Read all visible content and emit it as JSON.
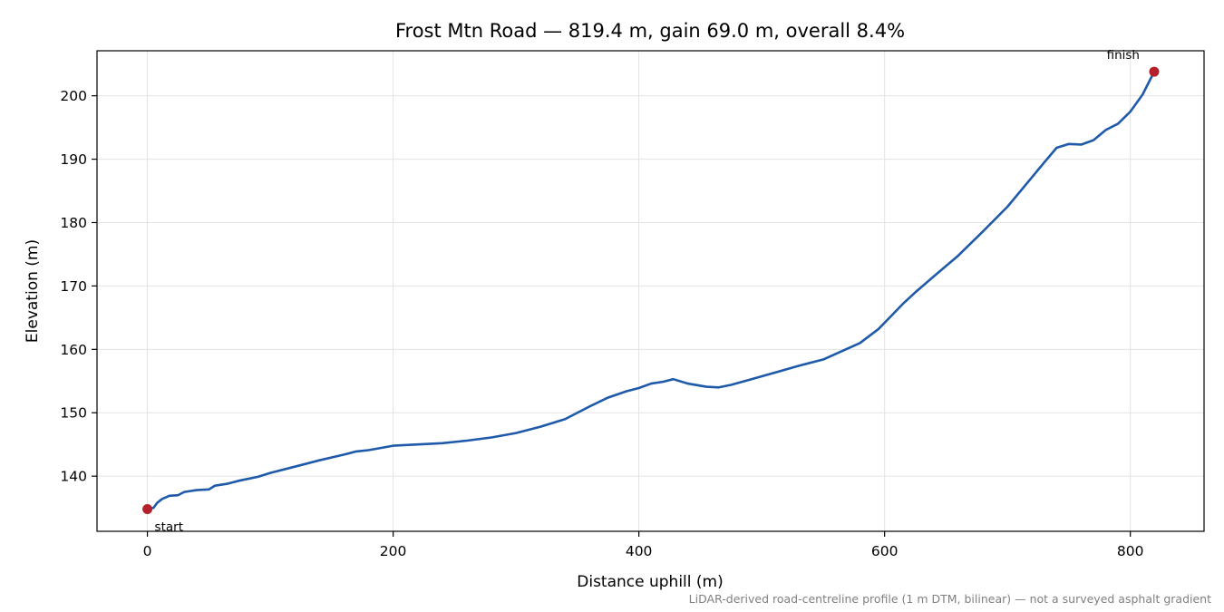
{
  "chart_data": {
    "type": "line",
    "title": "Frost Mtn Road — 819.4 m, gain 69.0 m, overall 8.4%",
    "xlabel": "Distance uphill (m)",
    "ylabel": "Elevation (m)",
    "xlim": [
      -41,
      860
    ],
    "ylim": [
      131.3,
      207.1
    ],
    "xticks": [
      0,
      200,
      400,
      600,
      800
    ],
    "yticks": [
      140,
      150,
      160,
      170,
      180,
      190,
      200
    ],
    "grid": true,
    "footnote": "LiDAR-derived road-centreline profile (1 m DTM, bilinear) — not a surveyed asphalt gradient",
    "line_color": "#1f5aaa",
    "marker_color": "#b5202a",
    "series": [
      {
        "x": [
          0,
          5,
          8,
          12,
          18,
          25,
          30,
          40,
          50,
          55,
          65,
          75,
          90,
          100,
          120,
          140,
          160,
          170,
          180,
          200,
          220,
          240,
          260,
          280,
          300,
          320,
          340,
          350,
          360,
          375,
          390,
          400,
          410,
          420,
          428,
          440,
          455,
          465,
          475,
          490,
          510,
          530,
          550,
          565,
          580,
          595,
          605,
          615,
          625,
          640,
          660,
          680,
          700,
          715,
          730,
          740,
          750,
          760,
          770,
          780,
          790,
          800,
          810,
          819.4
        ],
        "y": [
          134.8,
          135.0,
          135.8,
          136.4,
          136.9,
          137.0,
          137.5,
          137.8,
          137.9,
          138.5,
          138.8,
          139.3,
          139.9,
          140.5,
          141.5,
          142.5,
          143.4,
          143.9,
          144.1,
          144.8,
          145.0,
          145.2,
          145.6,
          146.1,
          146.8,
          147.8,
          149.0,
          150.0,
          151.0,
          152.4,
          153.4,
          153.9,
          154.6,
          154.9,
          155.3,
          154.6,
          154.1,
          154.0,
          154.4,
          155.2,
          156.3,
          157.4,
          158.4,
          159.7,
          161.0,
          163.2,
          165.2,
          167.2,
          169.0,
          171.5,
          174.8,
          178.6,
          182.5,
          186.0,
          189.5,
          191.8,
          192.4,
          192.3,
          193.0,
          194.6,
          195.6,
          197.5,
          200.2,
          203.8
        ]
      }
    ],
    "annotations": [
      {
        "text": "start",
        "x": 0,
        "y": 134.8
      },
      {
        "text": "finish",
        "x": 819.4,
        "y": 203.8
      }
    ]
  }
}
